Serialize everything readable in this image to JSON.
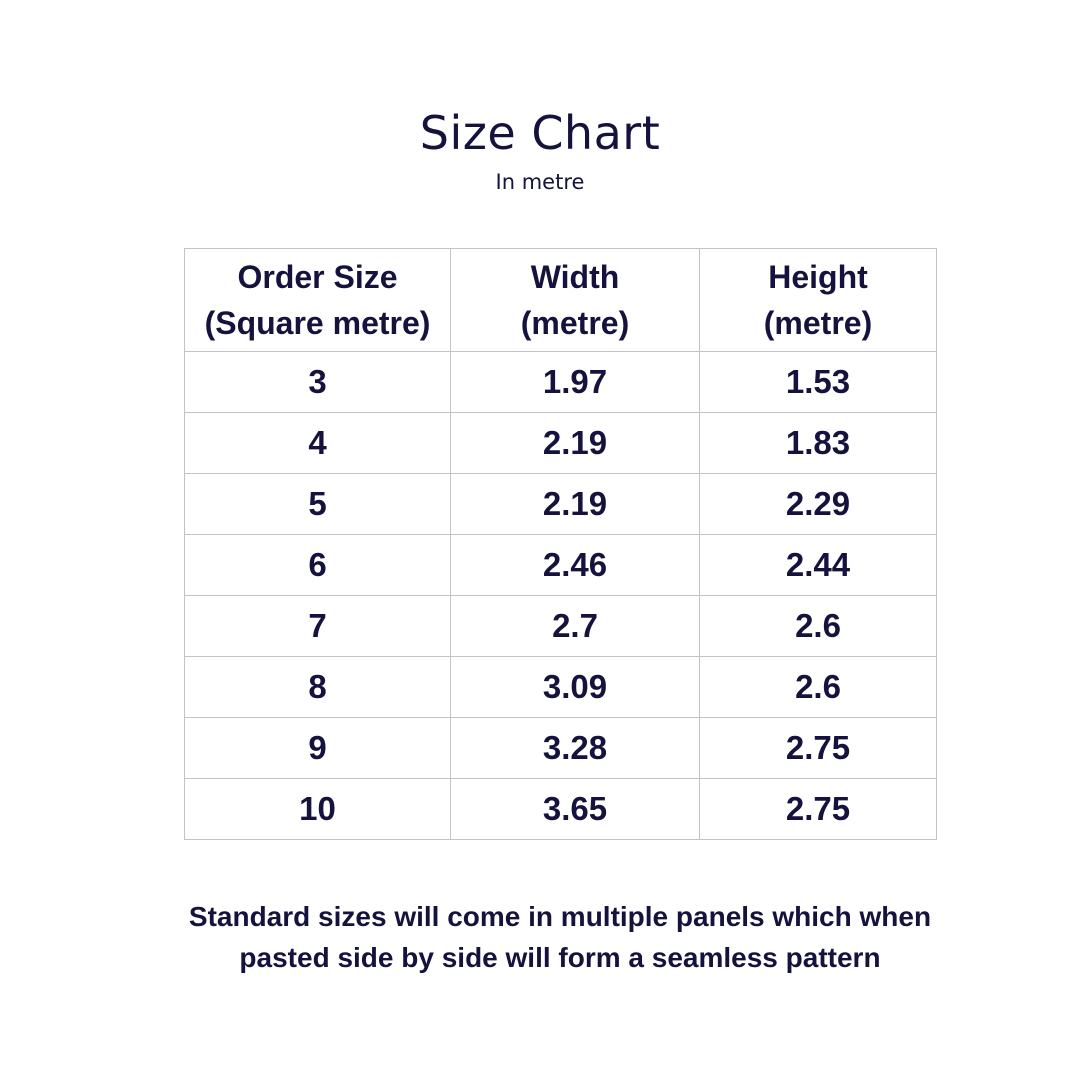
{
  "title": "Size Chart",
  "subtitle": "In metre",
  "table": {
    "headers": [
      [
        "Order Size",
        "(Square metre)"
      ],
      [
        "Width",
        "(metre)"
      ],
      [
        "Height",
        "(metre)"
      ]
    ],
    "rows": [
      [
        "3",
        "1.97",
        "1.53"
      ],
      [
        "4",
        "2.19",
        "1.83"
      ],
      [
        "5",
        "2.19",
        "2.29"
      ],
      [
        "6",
        "2.46",
        "2.44"
      ],
      [
        "7",
        "2.7",
        "2.6"
      ],
      [
        "8",
        "3.09",
        "2.6"
      ],
      [
        "9",
        "3.28",
        "2.75"
      ],
      [
        "10",
        "3.65",
        "2.75"
      ]
    ]
  },
  "note": {
    "line1": "Standard sizes  will come in multiple panels which when",
    "line2": "pasted side by side will form a seamless pattern"
  },
  "colors": {
    "text": "#15133d",
    "border": "#c3c3c3",
    "background": "#ffffff"
  }
}
